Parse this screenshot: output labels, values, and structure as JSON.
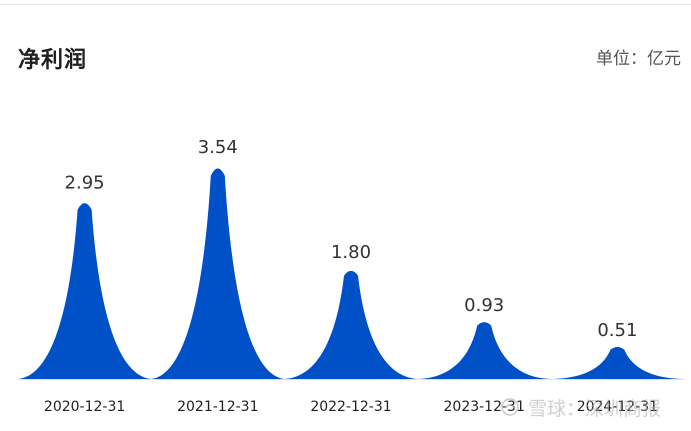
{
  "header": {
    "title": "净利润",
    "unit": "单位：亿元"
  },
  "watermark": {
    "text": "雪球：深圳商报",
    "icon": "snowball-icon"
  },
  "colors": {
    "bar": "#0050c8",
    "axis": "#e0e0e0",
    "label": "#333333",
    "tick": "#222222"
  },
  "chart_data": {
    "type": "bar",
    "style": "peak",
    "title": "净利润",
    "categories": [
      "2020-12-31",
      "2021-12-31",
      "2022-12-31",
      "2023-12-31",
      "2024-12-31"
    ],
    "values": [
      2.95,
      3.54,
      1.8,
      0.93,
      0.51
    ],
    "value_labels": [
      "2.95",
      "3.54",
      "1.80",
      "0.93",
      "0.51"
    ],
    "xlabel": "",
    "ylabel": "",
    "ylim": [
      0,
      3.54
    ],
    "grid": false,
    "legend": "none"
  }
}
